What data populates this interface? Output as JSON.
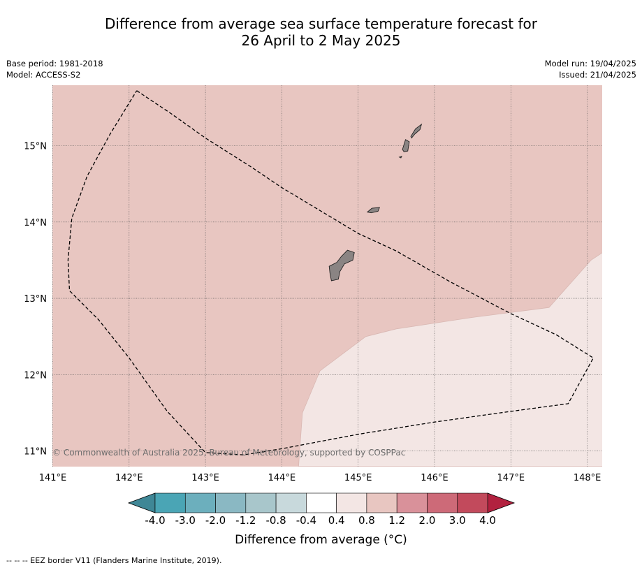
{
  "title": {
    "line1": "Difference from average sea surface temperature forecast for",
    "line2": "26 April to 2 May 2025"
  },
  "meta_left": {
    "base_period": "Base period: 1981-2018",
    "model": "Model: ACCESS-S2"
  },
  "meta_right": {
    "model_run": "Model run: 19/04/2025",
    "issued": "Issued: 21/04/2025"
  },
  "map": {
    "lon_range": [
      141.0,
      148.2
    ],
    "lat_range": [
      10.8,
      15.8
    ],
    "lon_ticks": [
      {
        "value": 141,
        "label": "141°E"
      },
      {
        "value": 142,
        "label": "142°E"
      },
      {
        "value": 143,
        "label": "143°E"
      },
      {
        "value": 144,
        "label": "144°E"
      },
      {
        "value": 145,
        "label": "145°E"
      },
      {
        "value": 146,
        "label": "146°E"
      },
      {
        "value": 147,
        "label": "147°E"
      },
      {
        "value": 148,
        "label": "148°E"
      }
    ],
    "lat_ticks": [
      {
        "value": 15,
        "label": "15°N"
      },
      {
        "value": 14,
        "label": "14°N"
      },
      {
        "value": 13,
        "label": "13°N"
      },
      {
        "value": 12,
        "label": "12°N"
      },
      {
        "value": 11,
        "label": "11°N"
      }
    ],
    "background_fill": "#e8c6c1",
    "anomaly_region": {
      "category": "0.4 to 0.8",
      "fill": "#f3e6e4",
      "boundary": [
        [
          144.22,
          10.8
        ],
        [
          144.27,
          11.5
        ],
        [
          144.5,
          12.05
        ],
        [
          145.1,
          12.5
        ],
        [
          145.5,
          12.6
        ],
        [
          146.5,
          12.75
        ],
        [
          147.5,
          12.88
        ],
        [
          148.05,
          13.5
        ],
        [
          148.2,
          13.6
        ],
        [
          148.2,
          10.8
        ]
      ]
    },
    "eez_border": [
      [
        142.1,
        15.72
      ],
      [
        142.55,
        15.42
      ],
      [
        143.0,
        15.1
      ],
      [
        143.6,
        14.72
      ],
      [
        144.0,
        14.45
      ],
      [
        144.5,
        14.15
      ],
      [
        145.0,
        13.85
      ],
      [
        145.5,
        13.62
      ],
      [
        146.2,
        13.22
      ],
      [
        147.0,
        12.8
      ],
      [
        147.6,
        12.52
      ],
      [
        148.08,
        12.22
      ],
      [
        147.75,
        11.62
      ],
      [
        147.0,
        11.52
      ],
      [
        146.0,
        11.38
      ],
      [
        145.0,
        11.22
      ],
      [
        144.0,
        11.03
      ],
      [
        143.5,
        10.95
      ],
      [
        143.0,
        10.98
      ],
      [
        142.5,
        11.52
      ],
      [
        142.0,
        12.22
      ],
      [
        141.6,
        12.72
      ],
      [
        141.22,
        13.1
      ],
      [
        141.2,
        13.5
      ],
      [
        141.25,
        14.05
      ],
      [
        141.45,
        14.6
      ],
      [
        141.75,
        15.15
      ],
      [
        142.1,
        15.72
      ]
    ],
    "islands": [
      {
        "name": "Guam",
        "points": [
          [
            144.62,
            13.42
          ],
          [
            144.72,
            13.47
          ],
          [
            144.78,
            13.55
          ],
          [
            144.86,
            13.63
          ],
          [
            144.95,
            13.6
          ],
          [
            144.93,
            13.5
          ],
          [
            144.82,
            13.45
          ],
          [
            144.76,
            13.35
          ],
          [
            144.74,
            13.25
          ],
          [
            144.65,
            13.23
          ],
          [
            144.63,
            13.33
          ],
          [
            144.62,
            13.42
          ]
        ]
      },
      {
        "name": "Rota",
        "points": [
          [
            145.12,
            14.13
          ],
          [
            145.18,
            14.18
          ],
          [
            145.28,
            14.19
          ],
          [
            145.26,
            14.14
          ],
          [
            145.17,
            14.12
          ],
          [
            145.12,
            14.13
          ]
        ]
      },
      {
        "name": "Tinian",
        "points": [
          [
            145.58,
            14.95
          ],
          [
            145.62,
            15.08
          ],
          [
            145.67,
            15.05
          ],
          [
            145.65,
            14.93
          ],
          [
            145.6,
            14.92
          ],
          [
            145.58,
            14.95
          ]
        ]
      },
      {
        "name": "Saipan",
        "points": [
          [
            145.69,
            15.12
          ],
          [
            145.75,
            15.22
          ],
          [
            145.83,
            15.28
          ],
          [
            145.81,
            15.21
          ],
          [
            145.74,
            15.15
          ],
          [
            145.7,
            15.1
          ],
          [
            145.69,
            15.12
          ]
        ]
      },
      {
        "name": "Aguijan",
        "points": [
          [
            145.54,
            14.85
          ],
          [
            145.57,
            14.86
          ],
          [
            145.56,
            14.84
          ],
          [
            145.54,
            14.85
          ]
        ]
      }
    ],
    "copyright": "© Commonwealth of Australia 2025, Bureau of Meteorology, supported by COSPPac"
  },
  "colorbar": {
    "title": "Difference from average (°C)",
    "labels": [
      "-4.0",
      "-3.0",
      "-2.0",
      "-1.2",
      "-0.8",
      "-0.4",
      "0.4",
      "0.8",
      "1.2",
      "2.0",
      "3.0",
      "4.0"
    ],
    "colors": [
      "#4aa5b5",
      "#6cafbd",
      "#8ab8c3",
      "#a8c6cb",
      "#c8d9dc",
      "#ffffff",
      "#f3e6e4",
      "#e8c6c1",
      "#d9919a",
      "#cd6a78",
      "#c24a5c"
    ],
    "under_color": "#3f8796",
    "over_color": "#b2213f"
  },
  "footer": "--  --  -- EEZ border V11 (Flanders Marine Institute, 2019)."
}
